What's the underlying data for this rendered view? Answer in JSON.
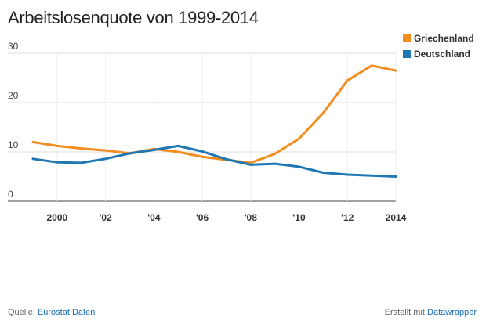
{
  "title": "Arbeitslosenquote von 1999-2014",
  "footer": {
    "source_prefix": "Quelle:",
    "source_link1": "Eurostat",
    "source_link2": "Daten",
    "credit_prefix": "Erstellt mit",
    "credit_link": "Datawrapper"
  },
  "chart_data": {
    "type": "line",
    "title": "Arbeitslosenquote von 1999-2014",
    "x": [
      1999,
      2000,
      2001,
      2002,
      2003,
      2004,
      2005,
      2006,
      2007,
      2008,
      2009,
      2010,
      2011,
      2012,
      2013,
      2014
    ],
    "xticks": [
      2000,
      2002,
      2004,
      2006,
      2008,
      2010,
      2012,
      2014
    ],
    "xtick_labels": [
      "2000",
      "'02",
      "'04",
      "'06",
      "'08",
      "'10",
      "'12",
      "2014"
    ],
    "yticks": [
      0,
      10,
      20,
      30
    ],
    "ylim": [
      0,
      30
    ],
    "grid": true,
    "legend_position": "top-right",
    "series": [
      {
        "name": "Griechenland",
        "color": "#f28d1e",
        "values": [
          12.0,
          11.2,
          10.7,
          10.3,
          9.7,
          10.6,
          10.0,
          9.0,
          8.4,
          7.8,
          9.6,
          12.7,
          17.9,
          24.5,
          27.5,
          26.5
        ]
      },
      {
        "name": "Deutschland",
        "color": "#1f77b4",
        "values": [
          8.6,
          7.9,
          7.8,
          8.6,
          9.7,
          10.4,
          11.2,
          10.1,
          8.5,
          7.4,
          7.6,
          7.0,
          5.8,
          5.4,
          5.2,
          5.0
        ]
      }
    ]
  }
}
